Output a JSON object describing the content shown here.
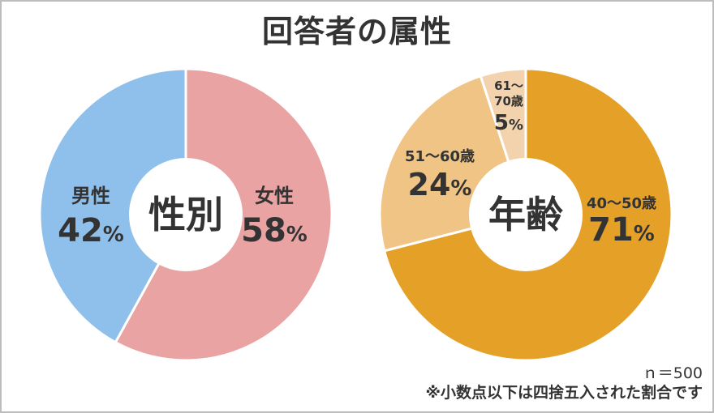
{
  "title": "回答者の属性",
  "colors": {
    "female": "#e9a3a3",
    "male": "#8fbfeb",
    "age_40_50": "#e5a028",
    "age_51_60": "#f0c485",
    "age_61_70": "#f3d3ae",
    "text": "#333333"
  },
  "chart_data": [
    {
      "type": "pie",
      "center_label": "性別",
      "slices": [
        {
          "label": "女性",
          "value": 58,
          "value_label": "58",
          "unit": "%"
        },
        {
          "label": "男性",
          "value": 42,
          "value_label": "42",
          "unit": "%"
        }
      ]
    },
    {
      "type": "pie",
      "center_label": "年齢",
      "slices": [
        {
          "label": "40～50歳",
          "value": 71,
          "value_label": "71",
          "unit": "%"
        },
        {
          "label": "51～60歳",
          "value": 24,
          "value_label": "24",
          "unit": "%"
        },
        {
          "label": "61～70歳",
          "label_lines": [
            "61～",
            "70歳"
          ],
          "value": 5,
          "value_label": "5",
          "unit": "%"
        }
      ]
    }
  ],
  "footer": {
    "sample_size": "ｎ＝500",
    "note": "※小数点以下は四捨五入された割合です"
  }
}
